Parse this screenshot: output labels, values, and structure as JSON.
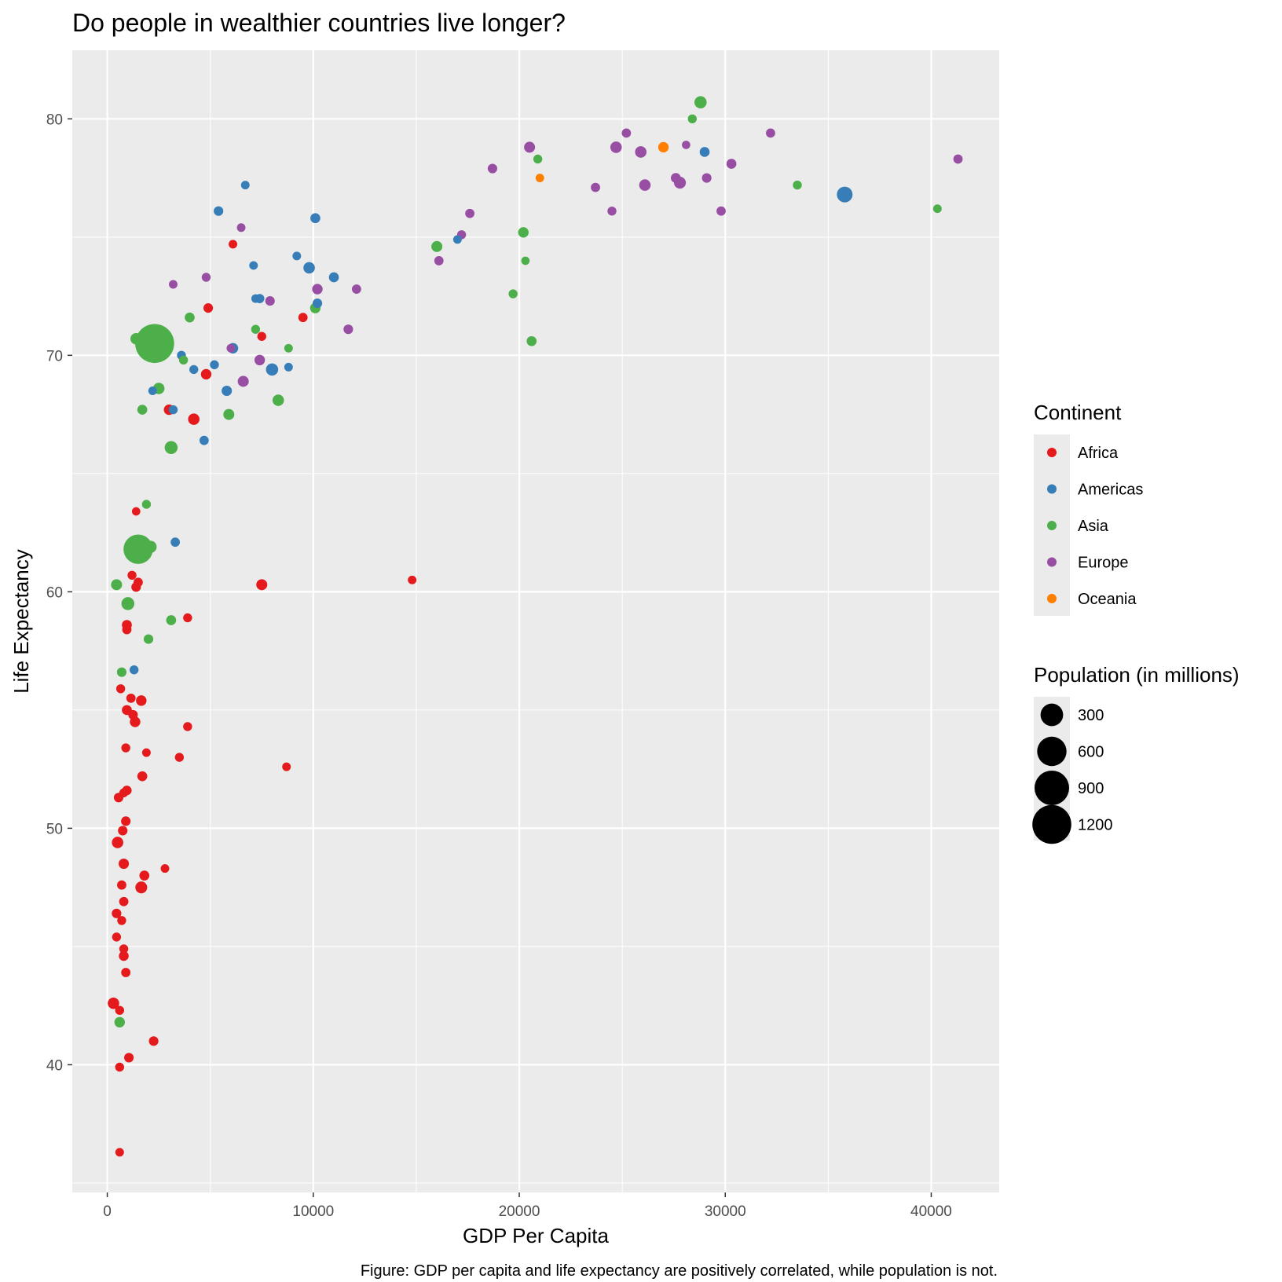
{
  "chart_data": {
    "type": "scatter",
    "title": "Do people in wealthier countries live longer?",
    "xlabel": "GDP Per Capita",
    "ylabel": "Life Expectancy",
    "caption": "Figure: GDP per capita and life expectancy are positively correlated, while population is not.",
    "xlim": [
      -1700,
      43300
    ],
    "ylim": [
      34.6,
      82.9
    ],
    "x_ticks": [
      0,
      10000,
      20000,
      30000,
      40000
    ],
    "x_tick_labels": [
      "0",
      "10000",
      "20000",
      "30000",
      "40000"
    ],
    "y_ticks": [
      40,
      50,
      60,
      70,
      80
    ],
    "y_tick_labels": [
      "40",
      "50",
      "60",
      "70",
      "80"
    ],
    "grid": true,
    "color_legend": {
      "title": "Continent",
      "position": "right",
      "entries": [
        {
          "label": "Africa",
          "color": "#e41a1c"
        },
        {
          "label": "Americas",
          "color": "#377eb8"
        },
        {
          "label": "Asia",
          "color": "#4daf4a"
        },
        {
          "label": "Europe",
          "color": "#984ea3"
        },
        {
          "label": "Oceania",
          "color": "#ff7f00"
        }
      ]
    },
    "size_legend": {
      "title": "Population (in millions)",
      "position": "right",
      "entries": [
        {
          "label": "300",
          "value": 300
        },
        {
          "label": "600",
          "value": 600
        },
        {
          "label": "900",
          "value": 900
        },
        {
          "label": "1200",
          "value": 1200
        }
      ]
    },
    "series": [
      {
        "name": "Africa",
        "points": [
          {
            "x": 600,
            "y": 36.3,
            "pop": 6
          },
          {
            "x": 600,
            "y": 39.9,
            "pop": 8
          },
          {
            "x": 1050,
            "y": 40.3,
            "pop": 12
          },
          {
            "x": 2250,
            "y": 41.0,
            "pop": 12
          },
          {
            "x": 300,
            "y": 42.6,
            "pop": 30
          },
          {
            "x": 600,
            "y": 42.3,
            "pop": 8
          },
          {
            "x": 900,
            "y": 43.9,
            "pop": 10
          },
          {
            "x": 800,
            "y": 44.6,
            "pop": 14
          },
          {
            "x": 800,
            "y": 44.9,
            "pop": 8
          },
          {
            "x": 450,
            "y": 45.4,
            "pop": 8
          },
          {
            "x": 700,
            "y": 46.1,
            "pop": 8
          },
          {
            "x": 450,
            "y": 46.4,
            "pop": 12
          },
          {
            "x": 800,
            "y": 46.9,
            "pop": 10
          },
          {
            "x": 1650,
            "y": 47.5,
            "pop": 35
          },
          {
            "x": 700,
            "y": 47.6,
            "pop": 10
          },
          {
            "x": 1800,
            "y": 48.0,
            "pop": 15
          },
          {
            "x": 2800,
            "y": 48.3,
            "pop": 6
          },
          {
            "x": 800,
            "y": 48.5,
            "pop": 18
          },
          {
            "x": 500,
            "y": 49.4,
            "pop": 30
          },
          {
            "x": 750,
            "y": 49.9,
            "pop": 12
          },
          {
            "x": 900,
            "y": 50.3,
            "pop": 12
          },
          {
            "x": 550,
            "y": 51.3,
            "pop": 12
          },
          {
            "x": 800,
            "y": 51.5,
            "pop": 8
          },
          {
            "x": 950,
            "y": 51.6,
            "pop": 12
          },
          {
            "x": 1700,
            "y": 52.2,
            "pop": 15
          },
          {
            "x": 8700,
            "y": 52.6,
            "pop": 6
          },
          {
            "x": 1900,
            "y": 53.2,
            "pop": 6
          },
          {
            "x": 3500,
            "y": 53.0,
            "pop": 8
          },
          {
            "x": 900,
            "y": 53.4,
            "pop": 8
          },
          {
            "x": 3900,
            "y": 54.3,
            "pop": 8
          },
          {
            "x": 1350,
            "y": 54.5,
            "pop": 20
          },
          {
            "x": 1250,
            "y": 54.8,
            "pop": 12
          },
          {
            "x": 950,
            "y": 55.0,
            "pop": 15
          },
          {
            "x": 1650,
            "y": 55.4,
            "pop": 20
          },
          {
            "x": 1150,
            "y": 55.5,
            "pop": 10
          },
          {
            "x": 650,
            "y": 55.9,
            "pop": 8
          },
          {
            "x": 3900,
            "y": 58.9,
            "pop": 8
          },
          {
            "x": 950,
            "y": 58.4,
            "pop": 10
          },
          {
            "x": 950,
            "y": 58.6,
            "pop": 15
          },
          {
            "x": 7500,
            "y": 60.3,
            "pop": 25
          },
          {
            "x": 1400,
            "y": 60.2,
            "pop": 12
          },
          {
            "x": 1500,
            "y": 60.4,
            "pop": 10
          },
          {
            "x": 1200,
            "y": 60.7,
            "pop": 8
          },
          {
            "x": 14800,
            "y": 60.5,
            "pop": 6
          },
          {
            "x": 1400,
            "y": 63.4,
            "pop": 5
          },
          {
            "x": 4200,
            "y": 67.3,
            "pop": 30
          },
          {
            "x": 3000,
            "y": 67.7,
            "pop": 20
          },
          {
            "x": 4800,
            "y": 69.2,
            "pop": 20
          },
          {
            "x": 7500,
            "y": 70.8,
            "pop": 8
          },
          {
            "x": 9500,
            "y": 71.6,
            "pop": 10
          },
          {
            "x": 4900,
            "y": 72.0,
            "pop": 12
          },
          {
            "x": 6100,
            "y": 74.7,
            "pop": 6
          }
        ]
      },
      {
        "name": "Americas",
        "points": [
          {
            "x": 1300,
            "y": 56.7,
            "pop": 8
          },
          {
            "x": 3300,
            "y": 62.1,
            "pop": 10
          },
          {
            "x": 4700,
            "y": 66.4,
            "pop": 10
          },
          {
            "x": 3200,
            "y": 67.7,
            "pop": 8
          },
          {
            "x": 5800,
            "y": 68.5,
            "pop": 18
          },
          {
            "x": 2200,
            "y": 68.5,
            "pop": 6
          },
          {
            "x": 4200,
            "y": 69.4,
            "pop": 8
          },
          {
            "x": 5200,
            "y": 69.6,
            "pop": 8
          },
          {
            "x": 3600,
            "y": 70.0,
            "pop": 8
          },
          {
            "x": 6100,
            "y": 70.3,
            "pop": 20
          },
          {
            "x": 8000,
            "y": 69.4,
            "pop": 40
          },
          {
            "x": 8800,
            "y": 69.5,
            "pop": 6
          },
          {
            "x": 7200,
            "y": 72.4,
            "pop": 6
          },
          {
            "x": 7400,
            "y": 72.4,
            "pop": 10
          },
          {
            "x": 10200,
            "y": 72.2,
            "pop": 12
          },
          {
            "x": 11000,
            "y": 73.3,
            "pop": 15
          },
          {
            "x": 9800,
            "y": 73.7,
            "pop": 30
          },
          {
            "x": 7100,
            "y": 73.8,
            "pop": 6
          },
          {
            "x": 9200,
            "y": 74.2,
            "pop": 6
          },
          {
            "x": 17000,
            "y": 74.9,
            "pop": 6
          },
          {
            "x": 10100,
            "y": 75.8,
            "pop": 15
          },
          {
            "x": 5400,
            "y": 76.1,
            "pop": 12
          },
          {
            "x": 6700,
            "y": 77.2,
            "pop": 6
          },
          {
            "x": 29000,
            "y": 78.6,
            "pop": 15
          },
          {
            "x": 35800,
            "y": 76.8,
            "pop": 100
          }
        ]
      },
      {
        "name": "Asia",
        "points": [
          {
            "x": 600,
            "y": 41.8,
            "pop": 20
          },
          {
            "x": 2000,
            "y": 58.0,
            "pop": 12
          },
          {
            "x": 3100,
            "y": 58.8,
            "pop": 15
          },
          {
            "x": 700,
            "y": 56.6,
            "pop": 12
          },
          {
            "x": 1000,
            "y": 59.5,
            "pop": 50
          },
          {
            "x": 450,
            "y": 60.3,
            "pop": 25
          },
          {
            "x": 1500,
            "y": 61.8,
            "pop": 600
          },
          {
            "x": 2100,
            "y": 61.9,
            "pop": 40
          },
          {
            "x": 1900,
            "y": 63.7,
            "pop": 8
          },
          {
            "x": 3100,
            "y": 66.1,
            "pop": 50
          },
          {
            "x": 1700,
            "y": 67.7,
            "pop": 15
          },
          {
            "x": 5900,
            "y": 67.5,
            "pop": 25
          },
          {
            "x": 8300,
            "y": 68.1,
            "pop": 30
          },
          {
            "x": 2500,
            "y": 68.6,
            "pop": 30
          },
          {
            "x": 3700,
            "y": 69.8,
            "pop": 8
          },
          {
            "x": 2300,
            "y": 70.5,
            "pop": 1200
          },
          {
            "x": 1400,
            "y": 70.7,
            "pop": 30
          },
          {
            "x": 8800,
            "y": 70.3,
            "pop": 6
          },
          {
            "x": 7200,
            "y": 71.1,
            "pop": 8
          },
          {
            "x": 4000,
            "y": 71.6,
            "pop": 15
          },
          {
            "x": 10100,
            "y": 72.0,
            "pop": 20
          },
          {
            "x": 19700,
            "y": 72.6,
            "pop": 8
          },
          {
            "x": 20300,
            "y": 74.0,
            "pop": 5
          },
          {
            "x": 16000,
            "y": 74.6,
            "pop": 25
          },
          {
            "x": 20200,
            "y": 75.2,
            "pop": 20
          },
          {
            "x": 20600,
            "y": 70.6,
            "pop": 15
          },
          {
            "x": 20900,
            "y": 78.3,
            "pop": 8
          },
          {
            "x": 28400,
            "y": 80.0,
            "pop": 8
          },
          {
            "x": 28800,
            "y": 80.7,
            "pop": 40
          },
          {
            "x": 33500,
            "y": 77.2,
            "pop": 8
          },
          {
            "x": 40300,
            "y": 76.2,
            "pop": 6
          }
        ]
      },
      {
        "name": "Europe",
        "points": [
          {
            "x": 3200,
            "y": 73.0,
            "pop": 6
          },
          {
            "x": 4800,
            "y": 73.3,
            "pop": 8
          },
          {
            "x": 6500,
            "y": 75.4,
            "pop": 6
          },
          {
            "x": 6000,
            "y": 70.3,
            "pop": 6
          },
          {
            "x": 6600,
            "y": 68.9,
            "pop": 25
          },
          {
            "x": 7400,
            "y": 69.8,
            "pop": 20
          },
          {
            "x": 7900,
            "y": 72.3,
            "pop": 12
          },
          {
            "x": 10200,
            "y": 72.8,
            "pop": 20
          },
          {
            "x": 11700,
            "y": 71.1,
            "pop": 12
          },
          {
            "x": 12100,
            "y": 72.8,
            "pop": 10
          },
          {
            "x": 16100,
            "y": 74.0,
            "pop": 10
          },
          {
            "x": 17200,
            "y": 75.1,
            "pop": 8
          },
          {
            "x": 17600,
            "y": 76.0,
            "pop": 10
          },
          {
            "x": 18700,
            "y": 77.9,
            "pop": 12
          },
          {
            "x": 20500,
            "y": 78.8,
            "pop": 25
          },
          {
            "x": 23700,
            "y": 77.1,
            "pop": 10
          },
          {
            "x": 24500,
            "y": 76.1,
            "pop": 8
          },
          {
            "x": 24700,
            "y": 78.8,
            "pop": 30
          },
          {
            "x": 25200,
            "y": 79.4,
            "pop": 10
          },
          {
            "x": 25900,
            "y": 78.6,
            "pop": 30
          },
          {
            "x": 26100,
            "y": 77.2,
            "pop": 30
          },
          {
            "x": 27600,
            "y": 77.5,
            "pop": 15
          },
          {
            "x": 27800,
            "y": 77.3,
            "pop": 35
          },
          {
            "x": 28100,
            "y": 78.9,
            "pop": 5
          },
          {
            "x": 29100,
            "y": 77.5,
            "pop": 12
          },
          {
            "x": 29800,
            "y": 76.1,
            "pop": 10
          },
          {
            "x": 30300,
            "y": 78.1,
            "pop": 15
          },
          {
            "x": 32200,
            "y": 79.4,
            "pop": 10
          },
          {
            "x": 41300,
            "y": 78.3,
            "pop": 10
          }
        ]
      },
      {
        "name": "Oceania",
        "points": [
          {
            "x": 27000,
            "y": 78.8,
            "pop": 20
          },
          {
            "x": 21000,
            "y": 77.5,
            "pop": 6
          }
        ]
      }
    ]
  }
}
